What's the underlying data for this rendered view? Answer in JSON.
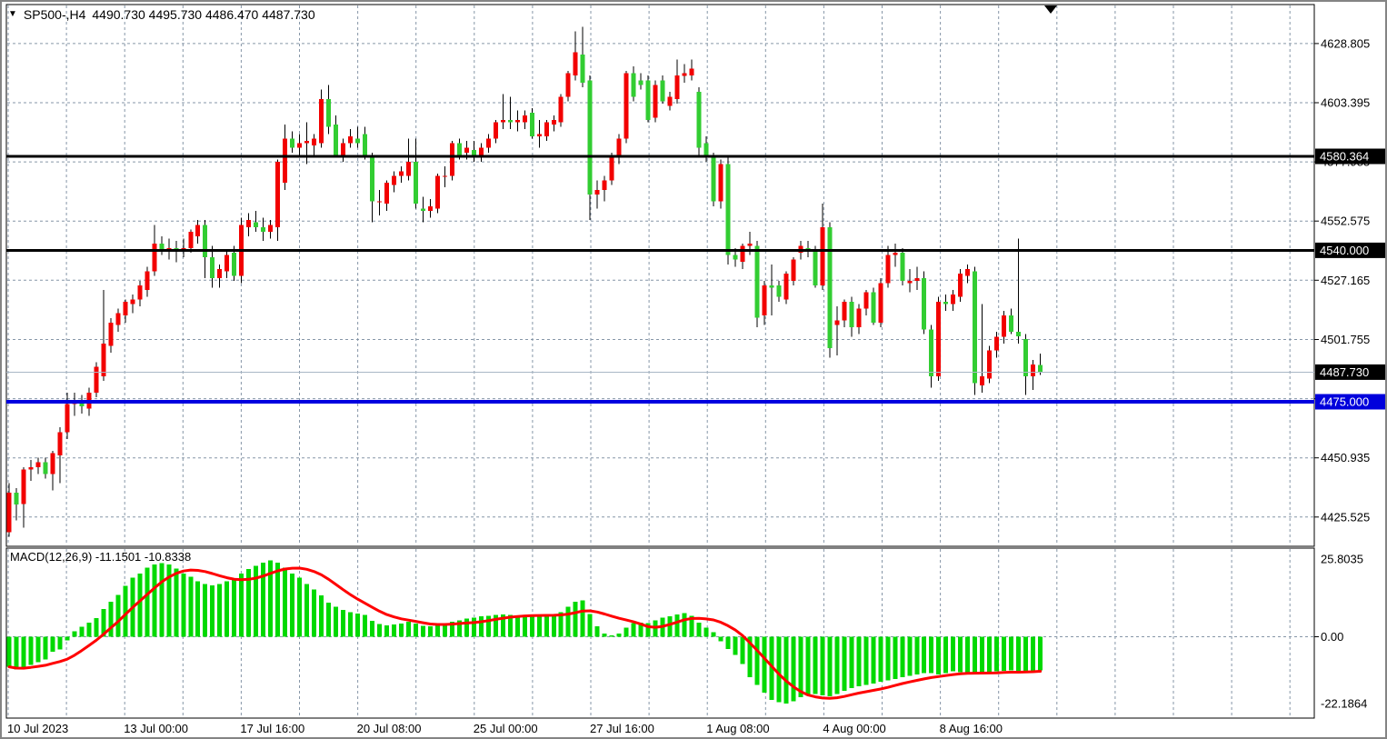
{
  "title": {
    "dropdown_icon": "▼",
    "symbol": "SP500-,H4",
    "ohlc_text": "4490.730 4495.730 4486.470 4487.730"
  },
  "price_axis": {
    "ticks": [
      {
        "label": "4628.805",
        "price": 4628.805
      },
      {
        "label": "4603.395",
        "price": 4603.395
      },
      {
        "label": "4577.985",
        "price": 4577.985
      },
      {
        "label": "4552.575",
        "price": 4552.575
      },
      {
        "label": "4527.165",
        "price": 4527.165
      },
      {
        "label": "4501.755",
        "price": 4501.755
      },
      {
        "label": "4476.345",
        "price": 4476.345
      },
      {
        "label": "4450.935",
        "price": 4450.935
      },
      {
        "label": "4425.525",
        "price": 4425.525
      }
    ],
    "highlights": [
      {
        "label": "4580.364",
        "price": 4580.364,
        "bg": "#000000",
        "fg": "#ffffff"
      },
      {
        "label": "4540.000",
        "price": 4540.0,
        "bg": "#000000",
        "fg": "#ffffff"
      },
      {
        "label": "4487.730",
        "price": 4487.73,
        "bg": "#000000",
        "fg": "#ffffff"
      },
      {
        "label": "4475.000",
        "price": 4475.0,
        "bg": "#0000dc",
        "fg": "#ffffff"
      }
    ]
  },
  "macd_axis": {
    "ticks": [
      {
        "label": "25.8035",
        "value": 25.8035
      },
      {
        "label": "0.00",
        "value": 0
      },
      {
        "label": "-22.1864",
        "value": -22.1864
      }
    ]
  },
  "time_axis": {
    "labels": [
      "10 Jul 2023",
      "13 Jul 00:00",
      "17 Jul 16:00",
      "20 Jul 08:00",
      "25 Jul 00:00",
      "27 Jul 16:00",
      "1 Aug 08:00",
      "4 Aug 00:00",
      "8 Aug 16:00"
    ]
  },
  "chart_data": [
    {
      "type": "candlestick",
      "symbol": "SP500-",
      "timeframe": "H4",
      "title": "SP500-,H4",
      "last_bar": {
        "open": 4490.73,
        "high": 4495.73,
        "low": 4486.47,
        "close": 4487.73
      },
      "ylim": [
        4412,
        4642
      ],
      "grid": true,
      "colors": {
        "up": "#f20000",
        "down": "#32cd32",
        "wick": "#000000",
        "grid": "#8696a7",
        "current_price_line": "#a9b7c6"
      },
      "levels": [
        {
          "name": "resistance-line",
          "price": 4580.364,
          "color": "#000000",
          "width": 3
        },
        {
          "name": "support-line",
          "price": 4540.0,
          "color": "#000000",
          "width": 3
        },
        {
          "name": "blue-support-line",
          "price": 4475.0,
          "color": "#0000e0",
          "width": 4
        },
        {
          "name": "current-price-line",
          "price": 4487.73,
          "color": "#a9b7c6",
          "width": 1
        }
      ],
      "candles": [
        [
          4419,
          4440,
          4417,
          4436
        ],
        [
          4436,
          4438,
          4424,
          4431
        ],
        [
          4431,
          4447,
          4421,
          4446
        ],
        [
          4446,
          4450,
          4441,
          4447
        ],
        [
          4447,
          4451,
          4444,
          4449
        ],
        [
          4449,
          4451,
          4442,
          4444
        ],
        [
          4444,
          4454,
          4437,
          4453
        ],
        [
          4452,
          4464,
          4440,
          4462
        ],
        [
          4462,
          4479,
          4459,
          4474
        ],
        [
          4474,
          4479,
          4469,
          4475
        ],
        [
          4475,
          4478,
          4470,
          4473
        ],
        [
          4472,
          4481,
          4469,
          4479
        ],
        [
          4479,
          4492,
          4477,
          4490
        ],
        [
          4486,
          4523,
          4484,
          4500
        ],
        [
          4499,
          4511,
          4496,
          4509
        ],
        [
          4508,
          4515,
          4505,
          4513
        ],
        [
          4512,
          4519,
          4509,
          4518
        ],
        [
          4517,
          4521,
          4513,
          4519
        ],
        [
          4519,
          4527,
          4516,
          4525
        ],
        [
          4523,
          4533,
          4520,
          4531
        ],
        [
          4531,
          4551,
          4529,
          4543
        ],
        [
          4543,
          4546,
          4538,
          4540
        ],
        [
          4540,
          4545,
          4536,
          4541
        ],
        [
          4541,
          4544,
          4535,
          4540
        ],
        [
          4540,
          4545,
          4537,
          4541
        ],
        [
          4541,
          4549,
          4539,
          4548
        ],
        [
          4546,
          4553,
          4543,
          4551
        ],
        [
          4551,
          4553,
          4528,
          4537
        ],
        [
          4537,
          4542,
          4524,
          4528
        ],
        [
          4528,
          4534,
          4524,
          4532
        ],
        [
          4531,
          4540,
          4528,
          4538
        ],
        [
          4539,
          4542,
          4527,
          4529
        ],
        [
          4529,
          4554,
          4526,
          4551
        ],
        [
          4550,
          4556,
          4546,
          4553
        ],
        [
          4552,
          4557,
          4548,
          4550
        ],
        [
          4550,
          4554,
          4544,
          4548
        ],
        [
          4548,
          4553,
          4545,
          4551
        ],
        [
          4550,
          4579,
          4544,
          4578
        ],
        [
          4569,
          4594,
          4566,
          4588
        ],
        [
          4588,
          4591,
          4582,
          4584
        ],
        [
          4584,
          4590,
          4580,
          4586
        ],
        [
          4586,
          4595,
          4577,
          4587
        ],
        [
          4585,
          4590,
          4581,
          4588
        ],
        [
          4586,
          4609,
          4584,
          4605
        ],
        [
          4605,
          4611,
          4590,
          4593
        ],
        [
          4594,
          4598,
          4580,
          4581
        ],
        [
          4580,
          4588,
          4578,
          4586
        ],
        [
          4586,
          4592,
          4584,
          4589
        ],
        [
          4588,
          4593,
          4584,
          4586
        ],
        [
          4590,
          4593,
          4579,
          4580
        ],
        [
          4580,
          4582,
          4552,
          4561
        ],
        [
          4561,
          4566,
          4555,
          4561
        ],
        [
          4560,
          4570,
          4557,
          4569
        ],
        [
          4568,
          4574,
          4565,
          4572
        ],
        [
          4572,
          4576,
          4569,
          4574
        ],
        [
          4572,
          4588,
          4570,
          4578
        ],
        [
          4578,
          4588,
          4558,
          4560
        ],
        [
          4558,
          4563,
          4552,
          4557
        ],
        [
          4557,
          4562,
          4554,
          4559
        ],
        [
          4558,
          4573,
          4556,
          4572
        ],
        [
          4572,
          4576,
          4567,
          4572
        ],
        [
          4572,
          4587,
          4570,
          4586
        ],
        [
          4586,
          4588,
          4579,
          4581
        ],
        [
          4582,
          4587,
          4579,
          4584
        ],
        [
          4583,
          4587,
          4578,
          4580
        ],
        [
          4580,
          4586,
          4578,
          4584
        ],
        [
          4584,
          4590,
          4582,
          4588
        ],
        [
          4588,
          4596,
          4586,
          4595
        ],
        [
          4595,
          4607,
          4592,
          4596
        ],
        [
          4596,
          4606,
          4592,
          4595
        ],
        [
          4595,
          4600,
          4591,
          4596
        ],
        [
          4595,
          4600,
          4592,
          4598
        ],
        [
          4599,
          4601,
          4588,
          4589
        ],
        [
          4589,
          4596,
          4584,
          4590
        ],
        [
          4589,
          4596,
          4587,
          4595
        ],
        [
          4594,
          4598,
          4591,
          4596
        ],
        [
          4595,
          4607,
          4593,
          4606
        ],
        [
          4606,
          4617,
          4604,
          4616
        ],
        [
          4615,
          4634,
          4613,
          4625
        ],
        [
          4624,
          4636,
          4610,
          4612
        ],
        [
          4613,
          4615,
          4553,
          4564
        ],
        [
          4564,
          4570,
          4558,
          4566
        ],
        [
          4566,
          4572,
          4561,
          4570
        ],
        [
          4570,
          4582,
          4568,
          4580
        ],
        [
          4580,
          4590,
          4577,
          4588
        ],
        [
          4588,
          4617,
          4586,
          4616
        ],
        [
          4616,
          4619,
          4604,
          4606
        ],
        [
          4613,
          4616,
          4609,
          4611
        ],
        [
          4613,
          4615,
          4595,
          4596
        ],
        [
          4597,
          4613,
          4595,
          4611
        ],
        [
          4613,
          4615,
          4603,
          4604
        ],
        [
          4602,
          4608,
          4600,
          4606
        ],
        [
          4605,
          4622,
          4603,
          4615
        ],
        [
          4615,
          4620,
          4612,
          4616
        ],
        [
          4615,
          4622,
          4613,
          4618
        ],
        [
          4608,
          4610,
          4581,
          4584
        ],
        [
          4586,
          4589,
          4578,
          4580
        ],
        [
          4580,
          4582,
          4559,
          4561
        ],
        [
          4561,
          4579,
          4558,
          4577
        ],
        [
          4577,
          4580,
          4534,
          4538
        ],
        [
          4538,
          4541,
          4533,
          4536
        ],
        [
          4535,
          4543,
          4532,
          4542
        ],
        [
          4542,
          4548,
          4538,
          4543
        ],
        [
          4542,
          4544,
          4507,
          4511
        ],
        [
          4512,
          4527,
          4508,
          4525
        ],
        [
          4525,
          4534,
          4512,
          4524
        ],
        [
          4525,
          4527,
          4518,
          4520
        ],
        [
          4519,
          4531,
          4517,
          4530
        ],
        [
          4527,
          4537,
          4525,
          4536
        ],
        [
          4539,
          4544,
          4536,
          4542
        ],
        [
          4541,
          4544,
          4537,
          4540
        ],
        [
          4540,
          4542,
          4524,
          4525
        ],
        [
          4525,
          4560,
          4523,
          4550
        ],
        [
          4550,
          4552,
          4494,
          4498
        ],
        [
          4508,
          4516,
          4495,
          4510
        ],
        [
          4510,
          4519,
          4507,
          4518
        ],
        [
          4518,
          4520,
          4503,
          4507
        ],
        [
          4507,
          4517,
          4504,
          4515
        ],
        [
          4515,
          4523,
          4512,
          4522
        ],
        [
          4522,
          4524,
          4508,
          4509
        ],
        [
          4509,
          4528,
          4507,
          4526
        ],
        [
          4526,
          4542,
          4524,
          4538
        ],
        [
          4538,
          4543,
          4533,
          4539
        ],
        [
          4539,
          4541,
          4525,
          4527
        ],
        [
          4526,
          4532,
          4522,
          4527
        ],
        [
          4527,
          4533,
          4523,
          4528
        ],
        [
          4528,
          4531,
          4504,
          4506
        ],
        [
          4506,
          4508,
          4481,
          4486
        ],
        [
          4486,
          4520,
          4484,
          4518
        ],
        [
          4518,
          4521,
          4514,
          4517
        ],
        [
          4517,
          4523,
          4514,
          4521
        ],
        [
          4520,
          4532,
          4518,
          4530
        ],
        [
          4529,
          4534,
          4526,
          4532
        ],
        [
          4531,
          4533,
          4478,
          4483
        ],
        [
          4482,
          4517,
          4479,
          4486
        ],
        [
          4485,
          4499,
          4483,
          4497
        ],
        [
          4497,
          4505,
          4494,
          4503
        ],
        [
          4503,
          4514,
          4500,
          4512
        ],
        [
          4512,
          4515,
          4504,
          4505
        ],
        [
          4505,
          4545,
          4500,
          4503
        ],
        [
          4502,
          4504,
          4478,
          4486
        ],
        [
          4486,
          4493,
          4480,
          4491
        ],
        [
          4490.73,
          4495.73,
          4486.47,
          4487.73
        ]
      ]
    },
    {
      "type": "bar",
      "name": "MACD(12,26,9)",
      "label": "MACD(12,26,9) -11.1501 -10.8338",
      "main_last": -11.1501,
      "signal_last": -10.8338,
      "signal_method": "sma9",
      "ylim": [
        -22.1864,
        25.8035
      ],
      "colors": {
        "histogram": "#00d900",
        "signal": "#ff0000"
      },
      "values": [
        -10,
        -10.8,
        -10.5,
        -9.4,
        -8.5,
        -7.6,
        -5,
        -4.2,
        -1.2,
        1.8,
        3.3,
        4.7,
        6.2,
        9.2,
        11.6,
        13.9,
        16.9,
        19.6,
        21,
        22.9,
        24,
        24.4,
        24,
        22.6,
        21,
        19.9,
        18.4,
        17.5,
        17,
        17.5,
        18.4,
        19.5,
        21,
        22.5,
        23.5,
        24.6,
        25.3,
        24.6,
        22.9,
        21,
        19.6,
        17.5,
        15.7,
        13.8,
        11.3,
        9.9,
        8.9,
        8.1,
        7.7,
        7.2,
        5.3,
        4.2,
        3.8,
        4,
        4.4,
        5,
        4.4,
        3.6,
        3.4,
        3.8,
        4.2,
        5,
        5.5,
        6,
        6.4,
        6.8,
        7,
        7.2,
        7.4,
        7.2,
        7,
        7.2,
        7,
        6.8,
        7,
        7.4,
        8.1,
        9.9,
        11.6,
        12,
        7.5,
        3.5,
        1,
        0.5,
        1,
        3,
        4.5,
        4.7,
        4.5,
        5.5,
        6.4,
        6.8,
        7.4,
        7.9,
        7,
        4.7,
        3,
        1.5,
        -1.5,
        -4,
        -6,
        -9,
        -13.5,
        -16,
        -18.5,
        -21,
        -21.8,
        -22.19,
        -21.5,
        -20,
        -19.5,
        -19,
        -19.5,
        -19.8,
        -19,
        -18,
        -17,
        -16.5,
        -16,
        -15.5,
        -15,
        -14.5,
        -14,
        -13.5,
        -13,
        -12.5,
        -12,
        -12,
        -12.5,
        -12,
        -11.5,
        -11.8,
        -12.2,
        -12.5,
        -12.2,
        -11.8,
        -11.5,
        -11.3,
        -11.2,
        -11.3,
        -11.5,
        -11.3,
        -11.1501
      ]
    }
  ]
}
